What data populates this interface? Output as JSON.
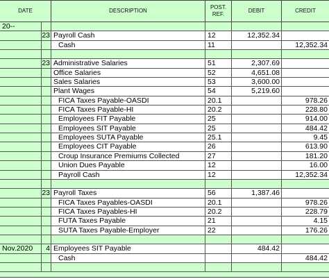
{
  "headers": {
    "date": "DATE",
    "description": "DESCRIPTION",
    "ref_line1": "POST.",
    "ref_line2": "REF.",
    "debit": "DEBIT",
    "credit": "CREDIT"
  },
  "rows": [
    {
      "date": "20--",
      "day": "",
      "desc": "",
      "indent": false,
      "ref": "",
      "debit": "",
      "credit": "",
      "white": false
    },
    {
      "date": "",
      "day": "23",
      "desc": "Payroll Cash",
      "indent": false,
      "ref": "12",
      "debit": "12,352.34",
      "credit": "",
      "white": true
    },
    {
      "date": "",
      "day": "",
      "desc": "Cash",
      "indent": true,
      "ref": "11",
      "debit": "",
      "credit": "12,352.34",
      "white": true
    },
    {
      "date": "",
      "day": "",
      "desc": "",
      "indent": false,
      "ref": "",
      "debit": "",
      "credit": "",
      "white": false
    },
    {
      "date": "",
      "day": "23",
      "desc": "Administrative Salaries",
      "indent": false,
      "ref": "51",
      "debit": "2,307.69",
      "credit": "",
      "white": true
    },
    {
      "date": "",
      "day": "",
      "desc": "Office Salaries",
      "indent": false,
      "ref": "52",
      "debit": "4,651.08",
      "credit": "",
      "white": true
    },
    {
      "date": "",
      "day": "",
      "desc": "Sales Salaries",
      "indent": false,
      "ref": "53",
      "debit": "3,600.00",
      "credit": "",
      "white": true
    },
    {
      "date": "",
      "day": "",
      "desc": "Plant Wages",
      "indent": false,
      "ref": "54",
      "debit": "5,219.60",
      "credit": "",
      "white": true
    },
    {
      "date": "",
      "day": "",
      "desc": "FICA Taxes Payable-OASDI",
      "indent": true,
      "ref": "20.1",
      "debit": "",
      "credit": "978.26",
      "white": true
    },
    {
      "date": "",
      "day": "",
      "desc": "FICA Taxes Payable-HI",
      "indent": true,
      "ref": "20.2",
      "debit": "",
      "credit": "228.80",
      "white": true
    },
    {
      "date": "",
      "day": "",
      "desc": "Employees FIT Payable",
      "indent": true,
      "ref": "25",
      "debit": "",
      "credit": "914.00",
      "white": true
    },
    {
      "date": "",
      "day": "",
      "desc": "Employees SIT Payable",
      "indent": true,
      "ref": "25",
      "debit": "",
      "credit": "484.42",
      "white": true
    },
    {
      "date": "",
      "day": "",
      "desc": "Employees SUTA Payable",
      "indent": true,
      "ref": "25.1",
      "debit": "",
      "credit": "9.45",
      "white": true
    },
    {
      "date": "",
      "day": "",
      "desc": "Employees CIT Payable",
      "indent": true,
      "ref": "26",
      "debit": "",
      "credit": "613.90",
      "white": true
    },
    {
      "date": "",
      "day": "",
      "desc": "Croup Insurance Premiums Collected",
      "indent": true,
      "ref": "27",
      "debit": "",
      "credit": "181.20",
      "white": true
    },
    {
      "date": "",
      "day": "",
      "desc": "Union Dues Payable",
      "indent": true,
      "ref": "12",
      "debit": "",
      "credit": "16.00",
      "white": true
    },
    {
      "date": "",
      "day": "",
      "desc": "Payroll Cash",
      "indent": true,
      "ref": "12",
      "debit": "",
      "credit": "12,352.34",
      "white": true
    },
    {
      "date": "",
      "day": "",
      "desc": "",
      "indent": false,
      "ref": "",
      "debit": "",
      "credit": "",
      "white": false
    },
    {
      "date": "",
      "day": "23",
      "desc": "Payroll Taxes",
      "indent": false,
      "ref": "56",
      "debit": "1,387.46",
      "credit": "",
      "white": true
    },
    {
      "date": "",
      "day": "",
      "desc": "FICA Taxes Payables-OASDI",
      "indent": true,
      "ref": "20.1",
      "debit": "",
      "credit": "978.26",
      "white": true
    },
    {
      "date": "",
      "day": "",
      "desc": "FICA Taxes Payables-HI",
      "indent": true,
      "ref": "20.2",
      "debit": "",
      "credit": "228.79",
      "white": true
    },
    {
      "date": "",
      "day": "",
      "desc": "FUTA Taxes Payable",
      "indent": true,
      "ref": "21",
      "debit": "",
      "credit": "4.15",
      "white": true
    },
    {
      "date": "",
      "day": "",
      "desc": "SUTA Taxes Payable-Employer",
      "indent": true,
      "ref": "22",
      "debit": "",
      "credit": "176.26",
      "white": true
    },
    {
      "date": "",
      "day": "",
      "desc": "",
      "indent": false,
      "ref": "",
      "debit": "",
      "credit": "",
      "white": false
    },
    {
      "date": "Nov.2020",
      "day": "4",
      "desc": "Employees SIT Payable",
      "indent": false,
      "ref": "",
      "debit": "484.42",
      "credit": "",
      "white": true
    },
    {
      "date": "",
      "day": "",
      "desc": "Cash",
      "indent": true,
      "ref": "",
      "debit": "",
      "credit": "484.42",
      "white": true
    },
    {
      "date": "",
      "day": "",
      "desc": "",
      "indent": false,
      "ref": "",
      "debit": "",
      "credit": "",
      "white": false
    }
  ]
}
